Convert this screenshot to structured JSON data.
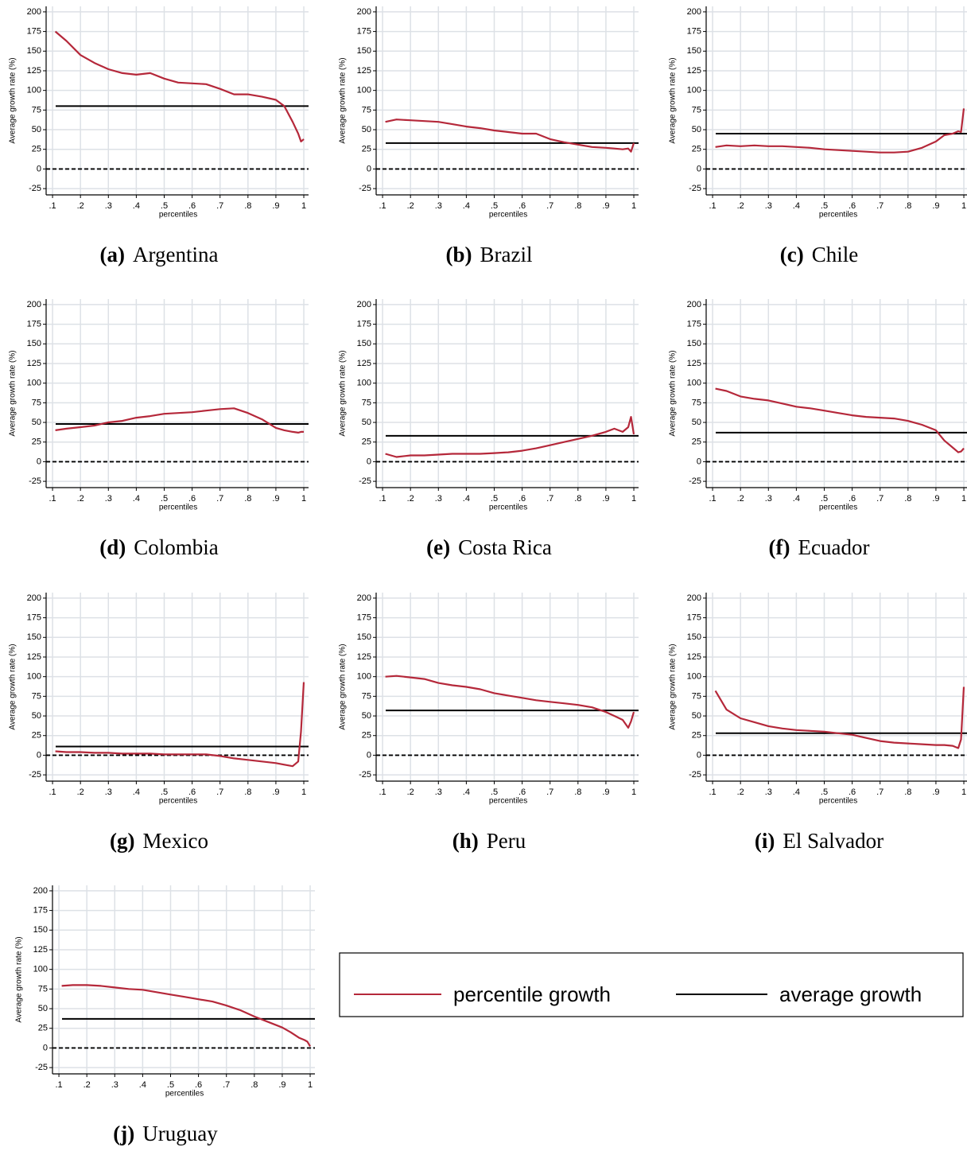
{
  "legend": [
    {
      "name": "percentile growth",
      "color": "#b5283a"
    },
    {
      "name": "average growth",
      "color": "#000000"
    }
  ],
  "chart_data": [
    {
      "type": "line",
      "label": "(a)",
      "title": "Argentina",
      "xlabel": "percentiles",
      "ylabel": "Average growth rate (%)",
      "x": [
        0.11,
        0.15,
        0.2,
        0.25,
        0.3,
        0.35,
        0.4,
        0.45,
        0.5,
        0.55,
        0.6,
        0.65,
        0.7,
        0.75,
        0.8,
        0.85,
        0.9,
        0.93,
        0.96,
        0.98,
        0.99,
        1.0
      ],
      "values": [
        175,
        163,
        145,
        135,
        127,
        122,
        120,
        122,
        115,
        110,
        109,
        108,
        102,
        95,
        95,
        92,
        88,
        80,
        60,
        45,
        35,
        38
      ],
      "average": 80,
      "hline": 0,
      "xlim": [
        0.077,
        1.017
      ],
      "ylim": [
        -33,
        207
      ],
      "xticks": [
        {
          "value": 0.1,
          "label": ".1"
        },
        {
          "value": 0.2,
          "label": ".2"
        },
        {
          "value": 0.3,
          "label": ".3"
        },
        {
          "value": 0.4,
          "label": ".4"
        },
        {
          "value": 0.5,
          "label": ".5"
        },
        {
          "value": 0.6,
          "label": ".6"
        },
        {
          "value": 0.7,
          "label": ".7"
        },
        {
          "value": 0.8,
          "label": ".8"
        },
        {
          "value": 0.9,
          "label": ".9"
        },
        1
      ],
      "yticks": [
        -25,
        0,
        25,
        50,
        75,
        100,
        125,
        150,
        175,
        200
      ],
      "grid": true
    },
    {
      "type": "line",
      "label": "(b)",
      "title": "Brazil",
      "xlabel": "percentiles",
      "ylabel": "Average growth rate (%)",
      "x": [
        0.11,
        0.15,
        0.2,
        0.25,
        0.3,
        0.35,
        0.4,
        0.45,
        0.5,
        0.55,
        0.6,
        0.65,
        0.7,
        0.75,
        0.8,
        0.85,
        0.9,
        0.93,
        0.96,
        0.98,
        0.99,
        1.0
      ],
      "values": [
        60,
        63,
        62,
        61,
        60,
        57,
        54,
        52,
        49,
        47,
        45,
        45,
        38,
        34,
        31,
        28,
        27,
        26,
        25,
        26,
        22,
        33
      ],
      "average": 33,
      "hline": 0,
      "xlim": [
        0.077,
        1.017
      ],
      "ylim": [
        -33,
        207
      ],
      "xticks": [
        {
          "value": 0.1,
          "label": ".1"
        },
        {
          "value": 0.2,
          "label": ".2"
        },
        {
          "value": 0.3,
          "label": ".3"
        },
        {
          "value": 0.4,
          "label": ".4"
        },
        {
          "value": 0.5,
          "label": ".5"
        },
        {
          "value": 0.6,
          "label": ".6"
        },
        {
          "value": 0.7,
          "label": ".7"
        },
        {
          "value": 0.8,
          "label": ".8"
        },
        {
          "value": 0.9,
          "label": ".9"
        },
        1
      ],
      "yticks": [
        -25,
        0,
        25,
        50,
        75,
        100,
        125,
        150,
        175,
        200
      ],
      "grid": true
    },
    {
      "type": "line",
      "label": "(c)",
      "title": "Chile",
      "xlabel": "percentiles",
      "ylabel": "Average growth rate (%)",
      "x": [
        0.11,
        0.15,
        0.2,
        0.25,
        0.3,
        0.35,
        0.4,
        0.45,
        0.5,
        0.55,
        0.6,
        0.65,
        0.7,
        0.75,
        0.8,
        0.85,
        0.9,
        0.93,
        0.96,
        0.98,
        0.99,
        1.0
      ],
      "values": [
        28,
        30,
        29,
        30,
        29,
        29,
        28,
        27,
        25,
        24,
        23,
        22,
        21,
        21,
        22,
        27,
        35,
        43,
        45,
        48,
        47,
        77
      ],
      "average": 45,
      "hline": 0,
      "xlim": [
        0.077,
        1.017
      ],
      "ylim": [
        -33,
        207
      ],
      "xticks": [
        {
          "value": 0.1,
          "label": ".1"
        },
        {
          "value": 0.2,
          "label": ".2"
        },
        {
          "value": 0.3,
          "label": ".3"
        },
        {
          "value": 0.4,
          "label": ".4"
        },
        {
          "value": 0.5,
          "label": ".5"
        },
        {
          "value": 0.6,
          "label": ".6"
        },
        {
          "value": 0.7,
          "label": ".7"
        },
        {
          "value": 0.8,
          "label": ".8"
        },
        {
          "value": 0.9,
          "label": ".9"
        },
        1
      ],
      "yticks": [
        -25,
        0,
        25,
        50,
        75,
        100,
        125,
        150,
        175,
        200
      ],
      "grid": true
    },
    {
      "type": "line",
      "label": "(d)",
      "title": "Colombia",
      "xlabel": "percentiles",
      "ylabel": "Average growth rate (%)",
      "x": [
        0.11,
        0.15,
        0.2,
        0.25,
        0.3,
        0.35,
        0.4,
        0.45,
        0.5,
        0.55,
        0.6,
        0.65,
        0.7,
        0.75,
        0.8,
        0.85,
        0.9,
        0.93,
        0.96,
        0.98,
        0.99,
        1.0
      ],
      "values": [
        40,
        42,
        44,
        46,
        50,
        52,
        56,
        58,
        61,
        62,
        63,
        65,
        67,
        68,
        62,
        54,
        43,
        40,
        38,
        37,
        38,
        38
      ],
      "average": 48,
      "hline": 0,
      "xlim": [
        0.077,
        1.017
      ],
      "ylim": [
        -33,
        207
      ],
      "xticks": [
        {
          "value": 0.1,
          "label": ".1"
        },
        {
          "value": 0.2,
          "label": ".2"
        },
        {
          "value": 0.3,
          "label": ".3"
        },
        {
          "value": 0.4,
          "label": ".4"
        },
        {
          "value": 0.5,
          "label": ".5"
        },
        {
          "value": 0.6,
          "label": ".6"
        },
        {
          "value": 0.7,
          "label": ".7"
        },
        {
          "value": 0.8,
          "label": ".8"
        },
        {
          "value": 0.9,
          "label": ".9"
        },
        1
      ],
      "yticks": [
        -25,
        0,
        25,
        50,
        75,
        100,
        125,
        150,
        175,
        200
      ],
      "grid": true
    },
    {
      "type": "line",
      "label": "(e)",
      "title": "Costa Rica",
      "xlabel": "percentiles",
      "ylabel": "Average growth rate (%)",
      "x": [
        0.11,
        0.15,
        0.2,
        0.25,
        0.3,
        0.35,
        0.4,
        0.45,
        0.5,
        0.55,
        0.6,
        0.65,
        0.7,
        0.75,
        0.8,
        0.85,
        0.9,
        0.93,
        0.96,
        0.98,
        0.99,
        1.0
      ],
      "values": [
        10,
        6,
        8,
        8,
        9,
        10,
        10,
        10,
        11,
        12,
        14,
        17,
        21,
        25,
        29,
        33,
        38,
        42,
        38,
        44,
        57,
        35
      ],
      "average": 33,
      "hline": 0,
      "xlim": [
        0.077,
        1.017
      ],
      "ylim": [
        -33,
        207
      ],
      "xticks": [
        {
          "value": 0.1,
          "label": ".1"
        },
        {
          "value": 0.2,
          "label": ".2"
        },
        {
          "value": 0.3,
          "label": ".3"
        },
        {
          "value": 0.4,
          "label": ".4"
        },
        {
          "value": 0.5,
          "label": ".5"
        },
        {
          "value": 0.6,
          "label": ".6"
        },
        {
          "value": 0.7,
          "label": ".7"
        },
        {
          "value": 0.8,
          "label": ".8"
        },
        {
          "value": 0.9,
          "label": ".9"
        },
        1
      ],
      "yticks": [
        -25,
        0,
        25,
        50,
        75,
        100,
        125,
        150,
        175,
        200
      ],
      "grid": true
    },
    {
      "type": "line",
      "label": "(f)",
      "title": "Ecuador",
      "xlabel": "percentiles",
      "ylabel": "Average growth rate (%)",
      "x": [
        0.11,
        0.15,
        0.2,
        0.25,
        0.3,
        0.35,
        0.4,
        0.45,
        0.5,
        0.55,
        0.6,
        0.65,
        0.7,
        0.75,
        0.8,
        0.85,
        0.9,
        0.93,
        0.96,
        0.98,
        0.99,
        1.0
      ],
      "values": [
        93,
        90,
        83,
        80,
        78,
        74,
        70,
        68,
        65,
        62,
        59,
        57,
        56,
        55,
        52,
        47,
        40,
        27,
        18,
        12,
        13,
        17
      ],
      "average": 37,
      "hline": 0,
      "xlim": [
        0.077,
        1.017
      ],
      "ylim": [
        -33,
        207
      ],
      "xticks": [
        {
          "value": 0.1,
          "label": ".1"
        },
        {
          "value": 0.2,
          "label": ".2"
        },
        {
          "value": 0.3,
          "label": ".3"
        },
        {
          "value": 0.4,
          "label": ".4"
        },
        {
          "value": 0.5,
          "label": ".5"
        },
        {
          "value": 0.6,
          "label": ".6"
        },
        {
          "value": 0.7,
          "label": ".7"
        },
        {
          "value": 0.8,
          "label": ".8"
        },
        {
          "value": 0.9,
          "label": ".9"
        },
        1
      ],
      "yticks": [
        -25,
        0,
        25,
        50,
        75,
        100,
        125,
        150,
        175,
        200
      ],
      "grid": true
    },
    {
      "type": "line",
      "label": "(g)",
      "title": "Mexico",
      "xlabel": "percentiles",
      "ylabel": "Average growth rate (%)",
      "x": [
        0.11,
        0.15,
        0.2,
        0.25,
        0.3,
        0.35,
        0.4,
        0.45,
        0.5,
        0.55,
        0.6,
        0.65,
        0.7,
        0.75,
        0.8,
        0.85,
        0.9,
        0.93,
        0.96,
        0.98,
        0.99,
        1.0
      ],
      "values": [
        5,
        4,
        4,
        3,
        3,
        2,
        2,
        2,
        1,
        1,
        1,
        1,
        -1,
        -4,
        -6,
        -8,
        -10,
        -12,
        -14,
        -8,
        30,
        93
      ],
      "average": 11,
      "hline": 0,
      "xlim": [
        0.077,
        1.017
      ],
      "ylim": [
        -33,
        207
      ],
      "xticks": [
        {
          "value": 0.1,
          "label": ".1"
        },
        {
          "value": 0.2,
          "label": ".2"
        },
        {
          "value": 0.3,
          "label": ".3"
        },
        {
          "value": 0.4,
          "label": ".4"
        },
        {
          "value": 0.5,
          "label": ".5"
        },
        {
          "value": 0.6,
          "label": ".6"
        },
        {
          "value": 0.7,
          "label": ".7"
        },
        {
          "value": 0.8,
          "label": ".8"
        },
        {
          "value": 0.9,
          "label": ".9"
        },
        1
      ],
      "yticks": [
        -25,
        0,
        25,
        50,
        75,
        100,
        125,
        150,
        175,
        200
      ],
      "grid": true
    },
    {
      "type": "line",
      "label": "(h)",
      "title": "Peru",
      "xlabel": "percentiles",
      "ylabel": "Average growth rate (%)",
      "x": [
        0.11,
        0.15,
        0.2,
        0.25,
        0.3,
        0.35,
        0.4,
        0.45,
        0.5,
        0.55,
        0.6,
        0.65,
        0.7,
        0.75,
        0.8,
        0.85,
        0.9,
        0.93,
        0.96,
        0.98,
        0.99,
        1.0
      ],
      "values": [
        100,
        101,
        99,
        97,
        92,
        89,
        87,
        84,
        79,
        76,
        73,
        70,
        68,
        66,
        64,
        61,
        55,
        50,
        45,
        35,
        43,
        55
      ],
      "average": 57,
      "hline": 0,
      "xlim": [
        0.077,
        1.017
      ],
      "ylim": [
        -33,
        207
      ],
      "xticks": [
        {
          "value": 0.1,
          "label": ".1"
        },
        {
          "value": 0.2,
          "label": ".2"
        },
        {
          "value": 0.3,
          "label": ".3"
        },
        {
          "value": 0.4,
          "label": ".4"
        },
        {
          "value": 0.5,
          "label": ".5"
        },
        {
          "value": 0.6,
          "label": ".6"
        },
        {
          "value": 0.7,
          "label": ".7"
        },
        {
          "value": 0.8,
          "label": ".8"
        },
        {
          "value": 0.9,
          "label": ".9"
        },
        1
      ],
      "yticks": [
        -25,
        0,
        25,
        50,
        75,
        100,
        125,
        150,
        175,
        200
      ],
      "grid": true
    },
    {
      "type": "line",
      "label": "(i)",
      "title": "El Salvador",
      "xlabel": "percentiles",
      "ylabel": "Average growth rate (%)",
      "x": [
        0.11,
        0.15,
        0.2,
        0.25,
        0.3,
        0.35,
        0.4,
        0.45,
        0.5,
        0.55,
        0.6,
        0.65,
        0.7,
        0.75,
        0.8,
        0.85,
        0.9,
        0.93,
        0.96,
        0.98,
        0.99,
        1.0
      ],
      "values": [
        82,
        58,
        47,
        42,
        37,
        34,
        32,
        31,
        30,
        28,
        26,
        22,
        18,
        16,
        15,
        14,
        13,
        13,
        12,
        9,
        20,
        87
      ],
      "average": 28,
      "hline": 0,
      "xlim": [
        0.077,
        1.017
      ],
      "ylim": [
        -33,
        207
      ],
      "xticks": [
        {
          "value": 0.1,
          "label": ".1"
        },
        {
          "value": 0.2,
          "label": ".2"
        },
        {
          "value": 0.3,
          "label": ".3"
        },
        {
          "value": 0.4,
          "label": ".4"
        },
        {
          "value": 0.5,
          "label": ".5"
        },
        {
          "value": 0.6,
          "label": ".6"
        },
        {
          "value": 0.7,
          "label": ".7"
        },
        {
          "value": 0.8,
          "label": ".8"
        },
        {
          "value": 0.9,
          "label": ".9"
        },
        1
      ],
      "yticks": [
        -25,
        0,
        25,
        50,
        75,
        100,
        125,
        150,
        175,
        200
      ],
      "grid": true
    },
    {
      "type": "line",
      "label": "(j)",
      "title": "Uruguay",
      "xlabel": "percentiles",
      "ylabel": "Average growth rate (%)",
      "x": [
        0.11,
        0.15,
        0.2,
        0.25,
        0.3,
        0.35,
        0.4,
        0.45,
        0.5,
        0.55,
        0.6,
        0.65,
        0.7,
        0.75,
        0.8,
        0.85,
        0.9,
        0.93,
        0.96,
        0.98,
        0.99,
        1.0
      ],
      "values": [
        79,
        80,
        80,
        79,
        77,
        75,
        74,
        71,
        68,
        65,
        62,
        59,
        54,
        48,
        40,
        33,
        26,
        20,
        13,
        10,
        8,
        2
      ],
      "average": 37,
      "hline": 0,
      "xlim": [
        0.077,
        1.017
      ],
      "ylim": [
        -33,
        207
      ],
      "xticks": [
        {
          "value": 0.1,
          "label": ".1"
        },
        {
          "value": 0.2,
          "label": ".2"
        },
        {
          "value": 0.3,
          "label": ".3"
        },
        {
          "value": 0.4,
          "label": ".4"
        },
        {
          "value": 0.5,
          "label": ".5"
        },
        {
          "value": 0.6,
          "label": ".6"
        },
        {
          "value": 0.7,
          "label": ".7"
        },
        {
          "value": 0.8,
          "label": ".8"
        },
        {
          "value": 0.9,
          "label": ".9"
        },
        1
      ],
      "yticks": [
        -25,
        0,
        25,
        50,
        75,
        100,
        125,
        150,
        175,
        200
      ],
      "grid": true
    }
  ]
}
